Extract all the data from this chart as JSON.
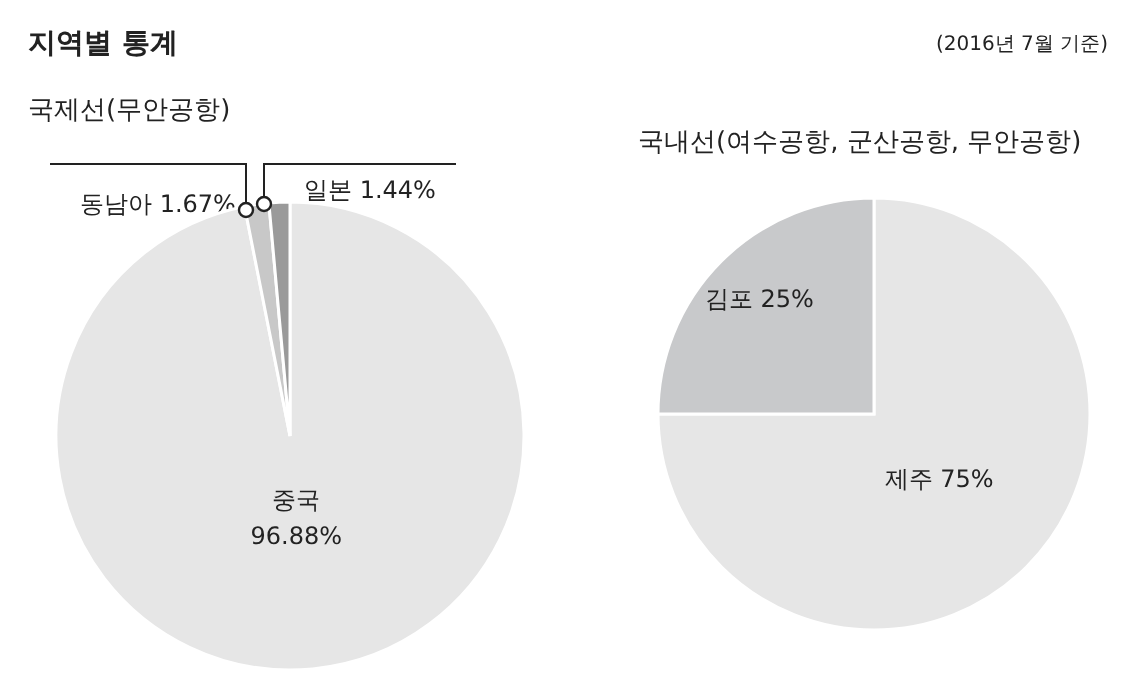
{
  "chart_data": [
    {
      "type": "pie",
      "title": "지역별 통계",
      "subtitle": "국제선(무안공항)",
      "categories": [
        "중국",
        "동남아",
        "일본"
      ],
      "values": [
        96.88,
        1.67,
        1.44
      ],
      "value_labels": [
        "96.88%",
        "1.67%",
        "1.44%"
      ],
      "colors": [
        "#e6e6e6",
        "#c8c8c8",
        "#9a9a9a"
      ]
    },
    {
      "type": "pie",
      "title": "국내선(여수공항, 군산공항, 무안공항)",
      "annotations": [
        "(2016년 7월 기준)"
      ],
      "categories": [
        "제주",
        "김포"
      ],
      "values": [
        75,
        25
      ],
      "value_labels": [
        "75%",
        "25%"
      ],
      "colors": [
        "#e6e6e6",
        "#c8c9cb"
      ]
    }
  ]
}
